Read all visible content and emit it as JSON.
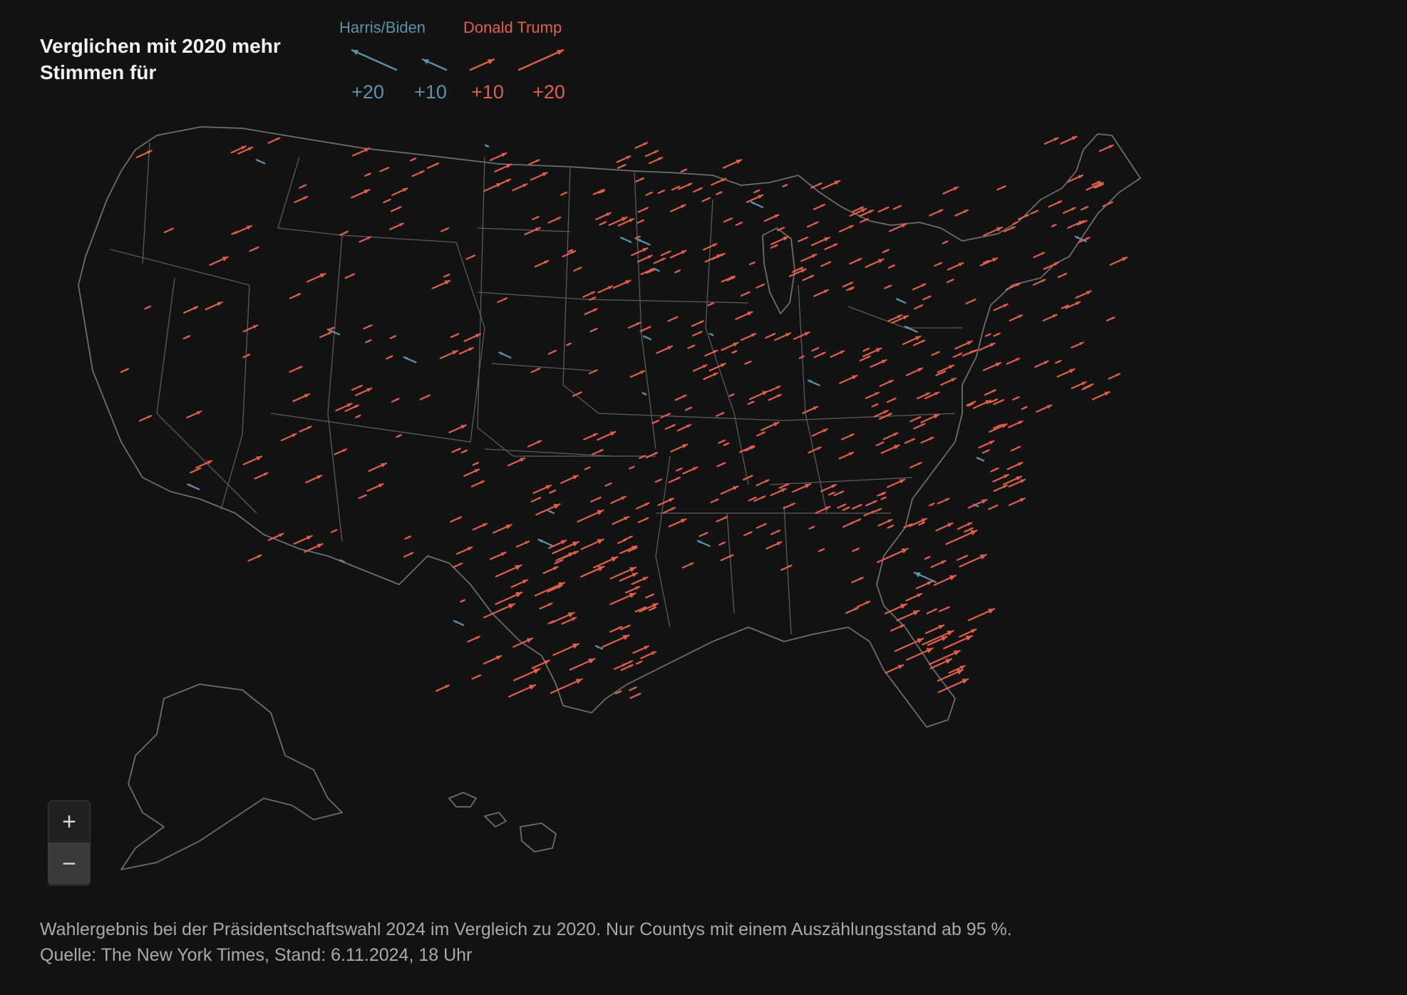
{
  "title": "Verglichen mit 2020 mehr Stimmen für",
  "legend": {
    "democrat": {
      "label": "Harris/Biden",
      "color": "#5b93aa"
    },
    "republican": {
      "label": "Donald Trump",
      "color": "#e2604a"
    },
    "scale": [
      {
        "party": "democrat",
        "label": "+20",
        "value": 20
      },
      {
        "party": "democrat",
        "label": "+10",
        "value": 10
      },
      {
        "party": "republican",
        "label": "+10",
        "value": 10
      },
      {
        "party": "republican",
        "label": "+20",
        "value": 20
      }
    ]
  },
  "zoom": {
    "in_label": "+",
    "out_label": "−"
  },
  "caption": {
    "line1": "Wahlergebnis bei der Präsidentschaftswahl 2024 im Vergleich zu 2020. Nur Countys mit einem Auszählungsstand ab 95 %.",
    "line2": "Quelle: The New York Times, Stand: 6.11.2024, 18 Uhr"
  },
  "map": {
    "arrow_color_republican": "#e2604a",
    "arrow_color_democrat": "#5b93aa",
    "border_color": "#6d6d6d"
  }
}
